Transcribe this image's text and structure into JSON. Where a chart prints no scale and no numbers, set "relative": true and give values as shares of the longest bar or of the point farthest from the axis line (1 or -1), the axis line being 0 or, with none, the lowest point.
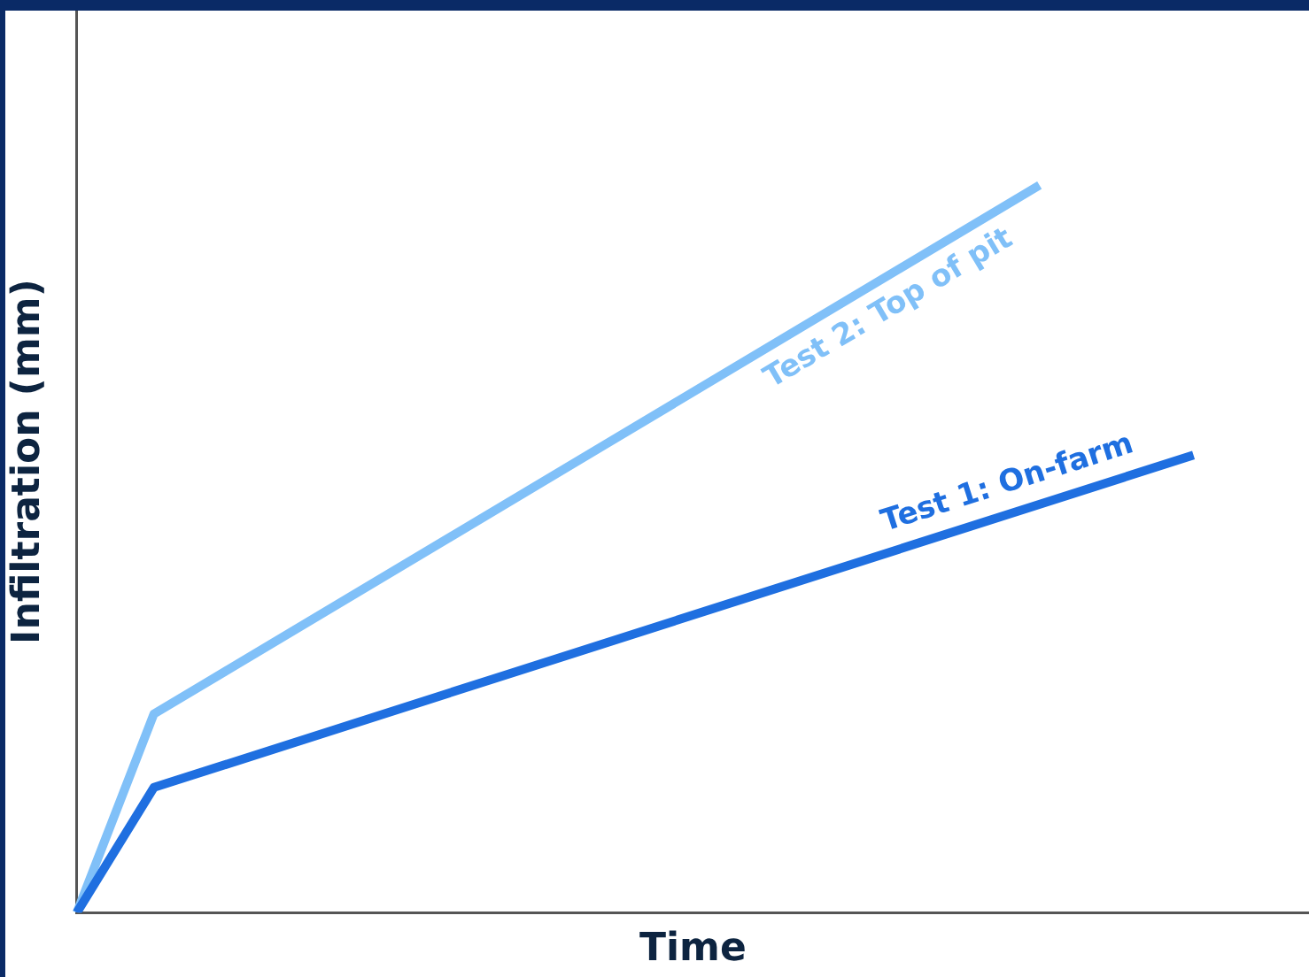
{
  "chart_data": {
    "type": "line",
    "relative": true,
    "xlabel": "Time",
    "ylabel": "Infiltration (mm)",
    "legend": false,
    "grid": false,
    "marker": "none",
    "line_style": "solid",
    "categories": [
      null,
      null,
      null,
      null,
      null,
      null,
      null,
      null,
      null,
      null,
      null,
      null,
      null,
      null,
      null,
      null,
      null,
      null,
      null,
      null,
      null,
      null,
      null,
      null,
      null,
      null,
      null,
      null,
      null,
      null,
      null,
      null,
      null
    ],
    "series": [
      {
        "name": "Test 1: On-farm",
        "color": "#1f6fe0",
        "values": [
          0,
          null,
          0.172,
          null,
          null,
          null,
          null,
          null,
          null,
          null,
          null,
          null,
          null,
          null,
          null,
          null,
          null,
          null,
          null,
          null,
          null,
          null,
          null,
          null,
          null,
          null,
          null,
          null,
          null,
          0.629,
          null,
          null,
          null
        ]
      },
      {
        "name": "Test 2: Top of pit",
        "color": "#80c0f8",
        "values": [
          0,
          null,
          0.273,
          null,
          null,
          null,
          null,
          null,
          null,
          null,
          null,
          null,
          null,
          null,
          null,
          null,
          null,
          null,
          null,
          null,
          null,
          null,
          null,
          null,
          null,
          1,
          null,
          null,
          null,
          null,
          null,
          null,
          null
        ]
      }
    ]
  }
}
